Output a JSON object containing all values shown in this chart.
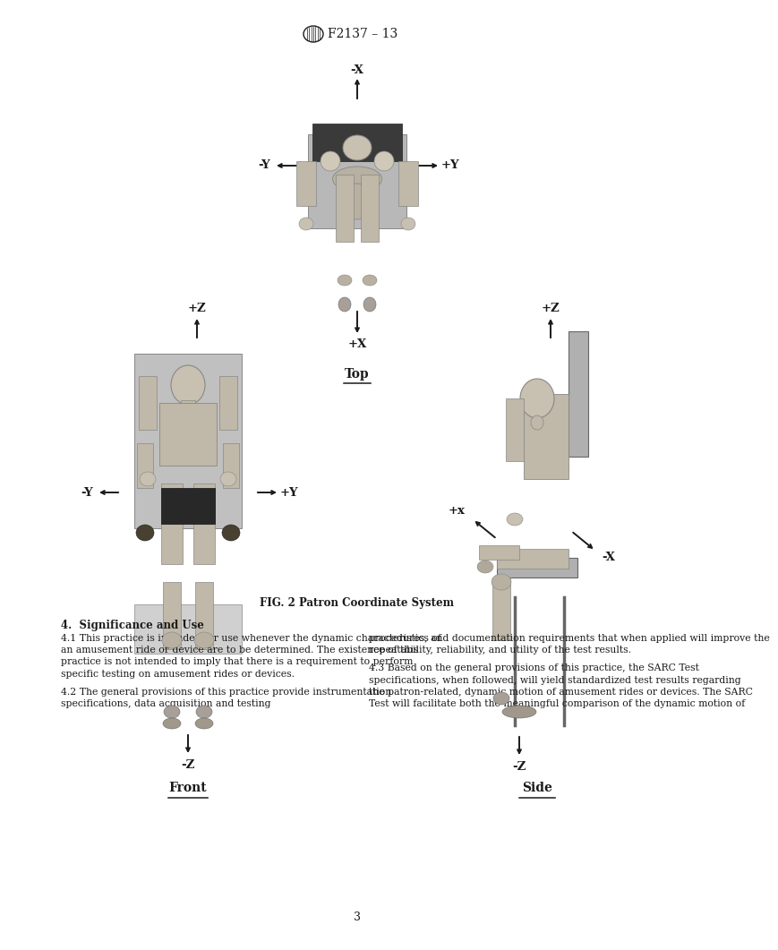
{
  "header_title": "F2137 – 13",
  "fig_caption": "FIG. 2 Patron Coordinate System",
  "top_label": "Top",
  "front_label": "Front",
  "side_label": "Side",
  "section_title": "4.  Significance and Use",
  "para_41": "4.1  This practice is intended for use whenever the dynamic characteristics of an amusement ride or device are to be determined. The existence of this practice is not intended to imply that there is a requirement to perform specific testing on amusement rides or devices.",
  "para_42": "4.2  The general provisions of this practice provide instrumentation specifications, data acquisition and testing",
  "para_right1": "procedures, and documentation requirements that when applied will improve the repeatability, reliability, and utility of the test results.",
  "para_43": "4.3  Based on the general provisions of this practice, the SARC Test specifications, when followed, will yield standardized test results regarding the patron-related, dynamic motion of amusement rides or devices. The SARC Test will facilitate both the meaningful comparison of the dynamic motion of",
  "page_number": "3",
  "bg_color": "#ffffff",
  "text_color": "#1a1a1a"
}
